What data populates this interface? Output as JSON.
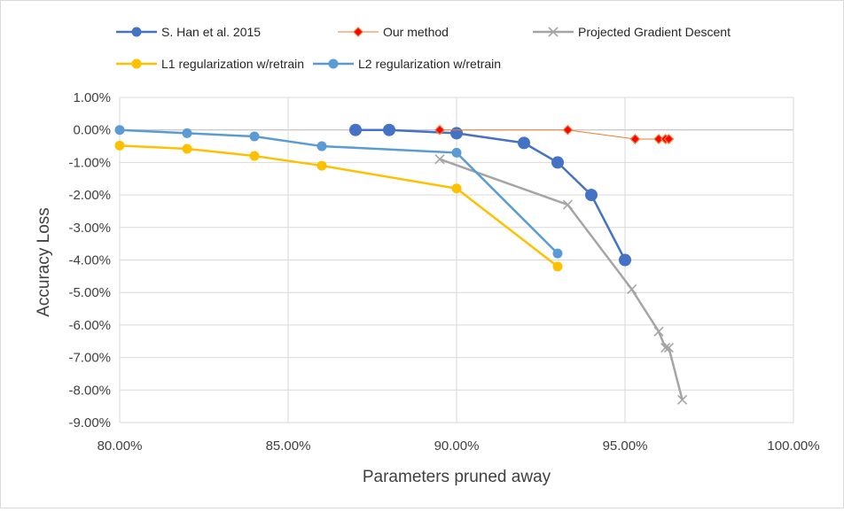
{
  "chart_data": {
    "type": "scatter",
    "xlabel": "Parameters pruned away",
    "ylabel": "Accuracy Loss",
    "xlim": [
      0.8,
      1.0
    ],
    "ylim": [
      -0.09,
      0.01
    ],
    "x_ticks": [
      "80.00%",
      "85.00%",
      "90.00%",
      "95.00%",
      "100.00%"
    ],
    "y_ticks": [
      "1.00%",
      "0.00%",
      "-1.00%",
      "-2.00%",
      "-3.00%",
      "-4.00%",
      "-5.00%",
      "-6.00%",
      "-7.00%",
      "-8.00%",
      "-9.00%"
    ],
    "grid": true,
    "legend_position": "top",
    "series": [
      {
        "name": "S. Han et al. 2015",
        "color": "#4472c4",
        "marker": "circle",
        "x": [
          0.87,
          0.88,
          0.9,
          0.92,
          0.93,
          0.94,
          0.95
        ],
        "y": [
          0.0,
          0.0,
          -0.001,
          -0.004,
          -0.01,
          -0.02,
          -0.04
        ]
      },
      {
        "name": "Our method",
        "color": "#ed7d31",
        "marker": "diamond",
        "x": [
          0.895,
          0.933,
          0.953,
          0.96,
          0.962,
          0.963
        ],
        "y": [
          0.0,
          0.0,
          -0.0028,
          -0.0028,
          -0.0028,
          -0.0028
        ]
      },
      {
        "name": "Projected Gradient Descent",
        "color": "#a5a5a5",
        "marker": "x",
        "x": [
          0.895,
          0.933,
          0.952,
          0.96,
          0.962,
          0.963,
          0.967
        ],
        "y": [
          -0.009,
          -0.023,
          -0.049,
          -0.062,
          -0.067,
          -0.067,
          -0.083
        ]
      },
      {
        "name": "L1 regularization w/retrain",
        "color": "#ffc000",
        "marker": "circle",
        "x": [
          0.8,
          0.82,
          0.84,
          0.86,
          0.9,
          0.93
        ],
        "y": [
          -0.0048,
          -0.0058,
          -0.008,
          -0.011,
          -0.018,
          -0.042
        ]
      },
      {
        "name": "L2 regularization w/retrain",
        "color": "#5b9bd5",
        "marker": "circle",
        "x": [
          0.8,
          0.82,
          0.84,
          0.86,
          0.9,
          0.93
        ],
        "y": [
          0.0,
          -0.001,
          -0.002,
          -0.005,
          -0.007,
          -0.038
        ]
      }
    ]
  }
}
